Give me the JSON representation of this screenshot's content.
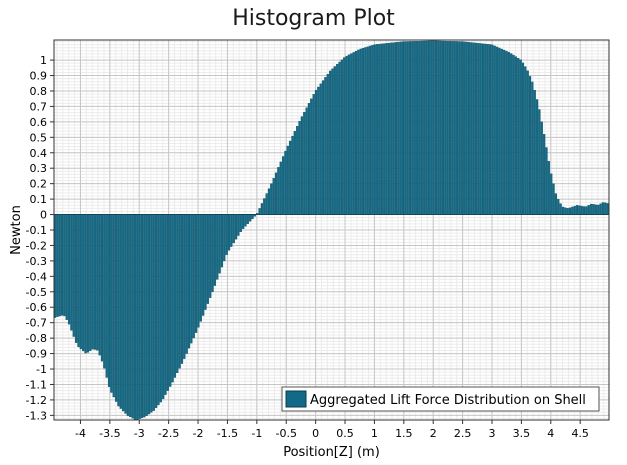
{
  "title": "Histogram Plot",
  "chart_data": {
    "type": "bar",
    "title": "Histogram Plot",
    "xlabel": "Position[Z]  (m)",
    "ylabel": "Newton",
    "xlim": [
      -4.45,
      4.99
    ],
    "ylim": [
      -1.33,
      1.13
    ],
    "x_ticks": [
      -4,
      -3.5,
      -3,
      -2.5,
      -2,
      -1.5,
      -1,
      -0.5,
      0,
      0.5,
      1,
      1.5,
      2,
      2.5,
      3,
      3.5,
      4,
      4.5
    ],
    "x_tick_labels": [
      "-4",
      "-3.5",
      "-3",
      "-2.5",
      "-2",
      "-1.5",
      "-1",
      "-0.5",
      "0",
      "0.5",
      "1",
      "1.5",
      "2",
      "2.5",
      "3",
      "3.5",
      "4",
      "4.5"
    ],
    "y_ticks": [
      -1.3,
      -1.2,
      -1.1,
      -1,
      -0.9,
      -0.8,
      -0.7,
      -0.6,
      -0.5,
      -0.4,
      -0.3,
      -0.2,
      -0.1,
      0,
      0.1,
      0.2,
      0.3,
      0.4,
      0.5,
      0.6,
      0.7,
      0.8,
      0.9,
      1
    ],
    "y_tick_labels": [
      "-1.3",
      "-1.2",
      "-1.1",
      "-1",
      "-0.9",
      "-0.8",
      "-0.7",
      "-0.6",
      "-0.5",
      "-0.4",
      "-0.3",
      "-0.2",
      "-0.1",
      "0",
      "0.1",
      "0.2",
      "0.3",
      "0.4",
      "0.5",
      "0.6",
      "0.7",
      "0.8",
      "0.9",
      "1"
    ],
    "grid": true,
    "legend_position": "bottom-right",
    "series": [
      {
        "name": "Aggregated Lift Force Distribution on Shell",
        "color": "#136a86",
        "x_bins": [
          -4.45,
          4.99
        ],
        "profile": [
          [
            -4.45,
            -0.67
          ],
          [
            -4.38,
            -0.66
          ],
          [
            -4.28,
            -0.65
          ],
          [
            -4.2,
            -0.7
          ],
          [
            -4.05,
            -0.85
          ],
          [
            -3.9,
            -0.9
          ],
          [
            -3.78,
            -0.87
          ],
          [
            -3.7,
            -0.88
          ],
          [
            -3.6,
            -0.98
          ],
          [
            -3.5,
            -1.13
          ],
          [
            -3.35,
            -1.24
          ],
          [
            -3.2,
            -1.3
          ],
          [
            -3.05,
            -1.33
          ],
          [
            -2.9,
            -1.31
          ],
          [
            -2.75,
            -1.27
          ],
          [
            -2.6,
            -1.2
          ],
          [
            -2.45,
            -1.1
          ],
          [
            -2.25,
            -0.95
          ],
          [
            -2.0,
            -0.74
          ],
          [
            -1.75,
            -0.5
          ],
          [
            -1.5,
            -0.25
          ],
          [
            -1.25,
            -0.1
          ],
          [
            -1.0,
            0.0
          ],
          [
            -0.75,
            0.2
          ],
          [
            -0.5,
            0.42
          ],
          [
            -0.25,
            0.62
          ],
          [
            0.0,
            0.8
          ],
          [
            0.25,
            0.93
          ],
          [
            0.5,
            1.02
          ],
          [
            0.75,
            1.07
          ],
          [
            1.0,
            1.1
          ],
          [
            1.5,
            1.12
          ],
          [
            2.0,
            1.125
          ],
          [
            2.5,
            1.12
          ],
          [
            3.0,
            1.1
          ],
          [
            3.3,
            1.05
          ],
          [
            3.5,
            1.0
          ],
          [
            3.6,
            0.94
          ],
          [
            3.7,
            0.85
          ],
          [
            3.8,
            0.7
          ],
          [
            3.9,
            0.5
          ],
          [
            4.0,
            0.28
          ],
          [
            4.1,
            0.12
          ],
          [
            4.2,
            0.05
          ],
          [
            4.3,
            0.04
          ],
          [
            4.45,
            0.06
          ],
          [
            4.6,
            0.05
          ],
          [
            4.7,
            0.07
          ],
          [
            4.8,
            0.06
          ],
          [
            4.9,
            0.08
          ],
          [
            4.99,
            0.07
          ]
        ]
      }
    ]
  }
}
